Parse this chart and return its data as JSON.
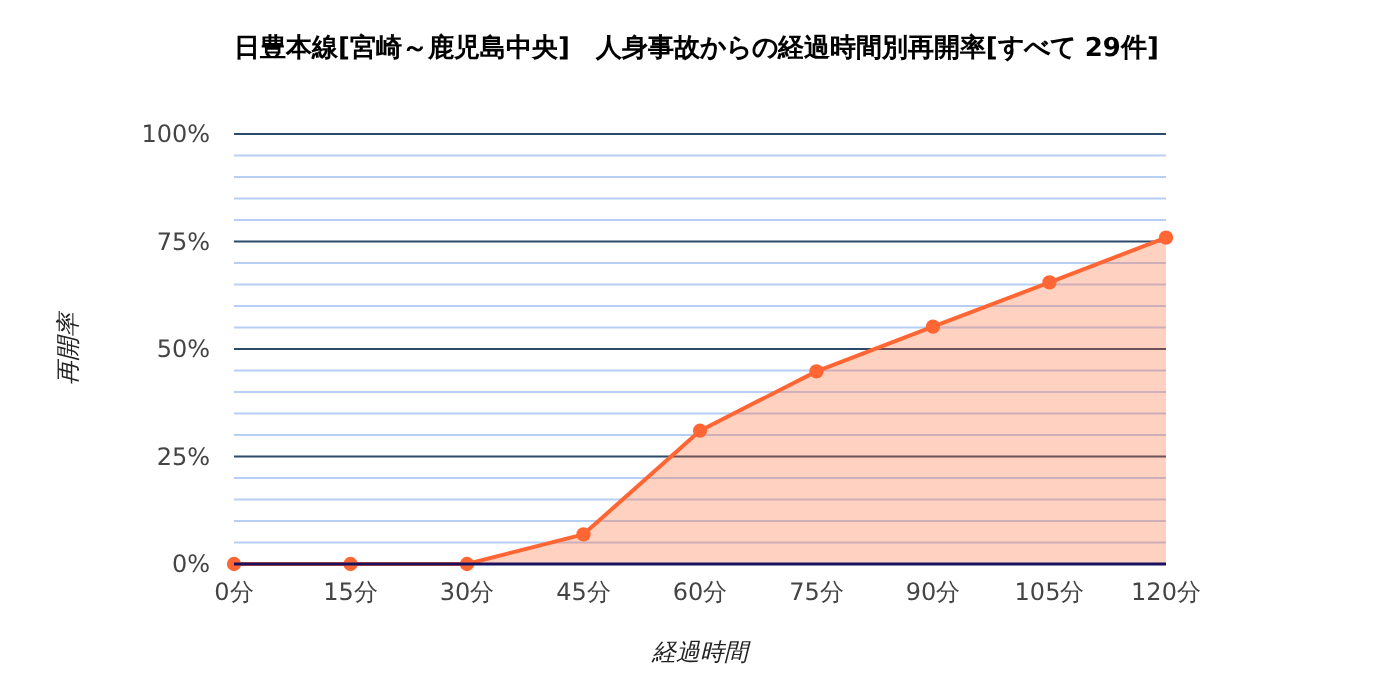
{
  "chart_data": {
    "type": "area",
    "title": "日豊本線[宮崎～鹿児島中央]　人身事故からの経過時間別再開率[すべて 29件]",
    "categories": [
      "0分",
      "15分",
      "30分",
      "45分",
      "60分",
      "75分",
      "90分",
      "105分",
      "120分"
    ],
    "series": [
      {
        "color": "#ff6633",
        "values": [
          0,
          0,
          0,
          6.9,
          31.0,
          44.8,
          55.2,
          65.5,
          75.9
        ]
      }
    ],
    "xlabel": "経過時間",
    "ylabel": "再開率",
    "ylim": [
      0,
      100
    ],
    "yticks": [
      {
        "value": 0,
        "label": "0%"
      },
      {
        "value": 5,
        "label": null
      },
      {
        "value": 10,
        "label": null
      },
      {
        "value": 15,
        "label": null
      },
      {
        "value": 20,
        "label": null
      },
      {
        "value": 25,
        "label": "25%"
      },
      {
        "value": 30,
        "label": null
      },
      {
        "value": 35,
        "label": null
      },
      {
        "value": 40,
        "label": null
      },
      {
        "value": 45,
        "label": null
      },
      {
        "value": 50,
        "label": "50%"
      },
      {
        "value": 55,
        "label": null
      },
      {
        "value": 60,
        "label": null
      },
      {
        "value": 65,
        "label": null
      },
      {
        "value": 70,
        "label": null
      },
      {
        "value": 75,
        "label": "75%"
      },
      {
        "value": 80,
        "label": null
      },
      {
        "value": 85,
        "label": null
      },
      {
        "value": 90,
        "label": null
      },
      {
        "value": 95,
        "label": null
      },
      {
        "value": 100,
        "label": "100%"
      }
    ],
    "grid": true,
    "marker": "circle"
  }
}
